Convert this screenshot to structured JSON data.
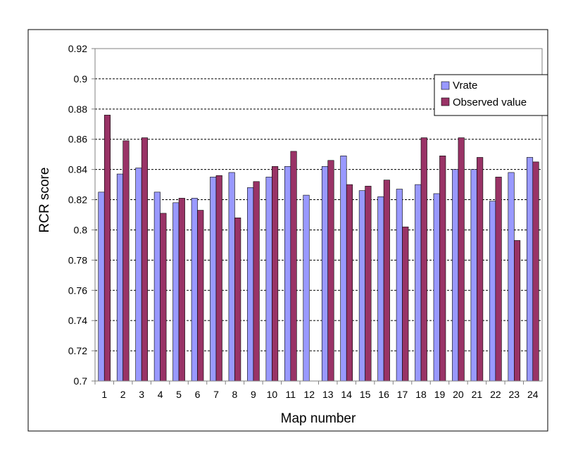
{
  "colors": {
    "vrate": "#9999FF",
    "observed": "#993366",
    "background": "#FFFFFF",
    "frame": "#000000",
    "grid": "#000000"
  },
  "chart_data": {
    "type": "bar",
    "xlabel": "Map number",
    "ylabel": "RCR score",
    "ylim": [
      0.7,
      0.92
    ],
    "yticks": [
      "0.7",
      "0.72",
      "0.74",
      "0.76",
      "0.78",
      "0.8",
      "0.82",
      "0.84",
      "0.86",
      "0.88",
      "0.9",
      "0.92"
    ],
    "ytick_step": 0.02,
    "grid": "horizontal dashed",
    "legend_position": "top-right",
    "categories": [
      "1",
      "2",
      "3",
      "4",
      "5",
      "6",
      "7",
      "8",
      "9",
      "10",
      "11",
      "12",
      "13",
      "14",
      "15",
      "16",
      "17",
      "18",
      "19",
      "20",
      "21",
      "22",
      "23",
      "24"
    ],
    "series": [
      {
        "name": "Vrate",
        "color": "#9999FF",
        "values": [
          0.825,
          0.837,
          0.841,
          0.825,
          0.818,
          0.821,
          0.835,
          0.838,
          0.828,
          0.835,
          0.842,
          0.823,
          0.842,
          0.849,
          0.826,
          0.822,
          0.827,
          0.83,
          0.824,
          0.84,
          0.84,
          0.819,
          0.838,
          0.848
        ]
      },
      {
        "name": "Observed value",
        "color": "#993366",
        "values": [
          0.876,
          0.859,
          0.861,
          0.811,
          0.821,
          0.813,
          0.836,
          0.808,
          0.832,
          0.842,
          0.852,
          null,
          0.846,
          0.83,
          0.829,
          0.833,
          0.802,
          0.861,
          0.849,
          0.861,
          0.848,
          0.835,
          0.793,
          0.845
        ]
      }
    ]
  }
}
